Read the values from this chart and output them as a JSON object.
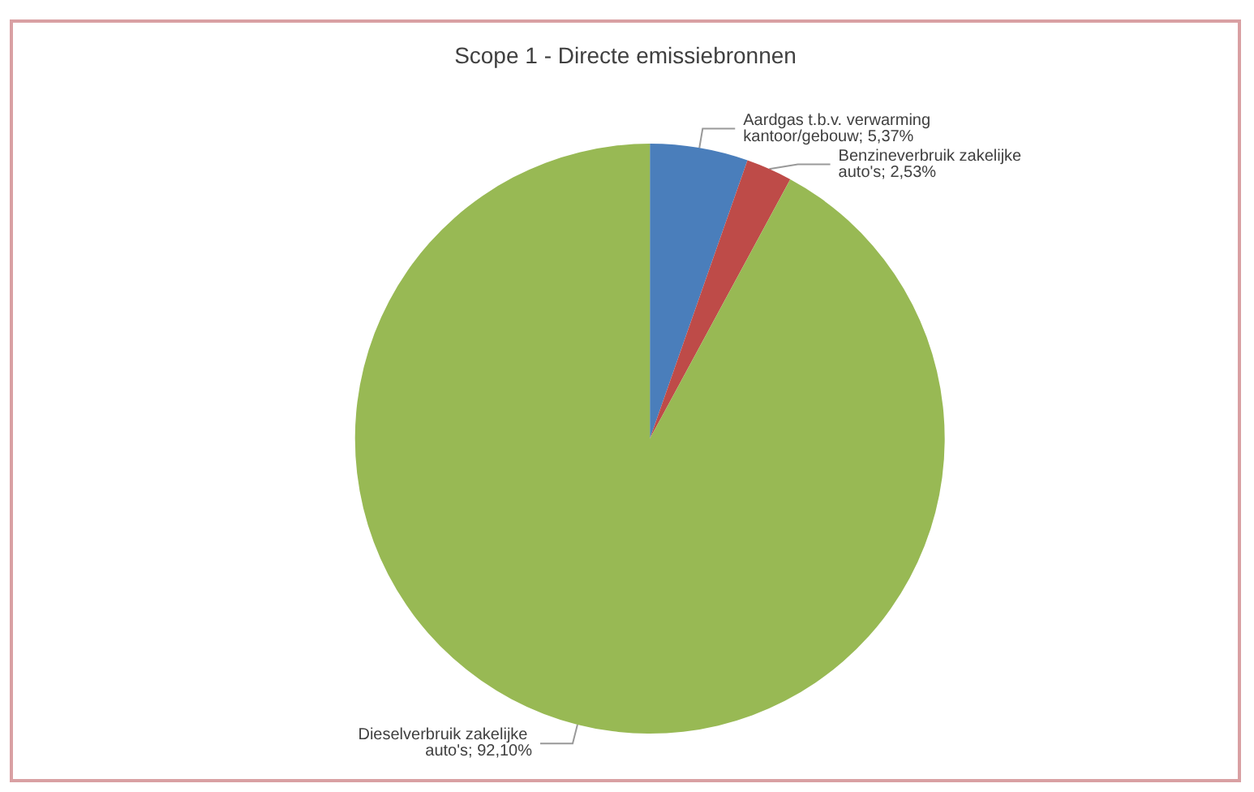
{
  "chart_data": {
    "type": "pie",
    "title": "Scope 1 - Directe emissiebronnen",
    "categories": [
      "Aardgas t.b.v. verwarming kantoor/gebouw",
      "Benzineverbruik zakelijke auto's",
      "Dieselverbruik zakelijke auto's"
    ],
    "values": [
      5.37,
      2.53,
      92.1
    ],
    "value_labels": [
      "5,37%",
      "2,53%",
      "92,10%"
    ],
    "colors": [
      "#4a7ebb",
      "#be4b48",
      "#98b954"
    ],
    "legend": false
  }
}
